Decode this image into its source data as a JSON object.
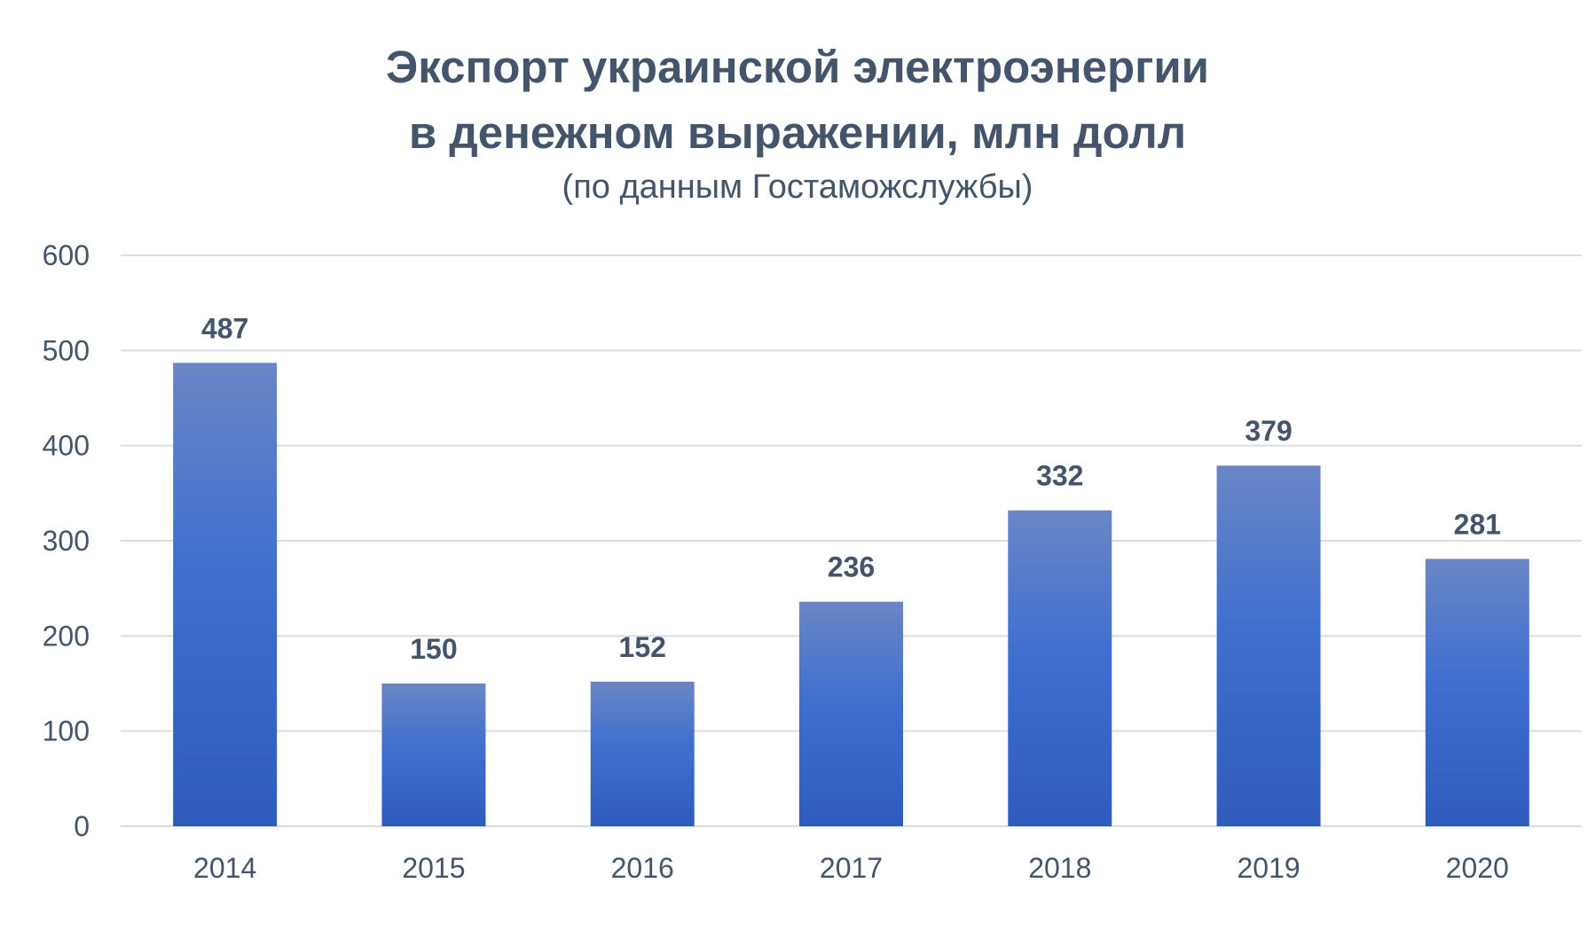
{
  "chart_data": {
    "type": "bar",
    "title_line1": "Экспорт украинской электроэнергии",
    "title_line2": "в денежном выражении, млн долл",
    "subtitle": "(по данным Гостаможслужбы)",
    "xlabel": "",
    "ylabel": "",
    "categories": [
      "2014",
      "2015",
      "2016",
      "2017",
      "2018",
      "2019",
      "2020"
    ],
    "values": [
      487,
      150,
      152,
      236,
      332,
      379,
      281
    ],
    "data_labels": [
      "487",
      "150",
      "152",
      "236",
      "332",
      "379",
      "281"
    ],
    "ylim": [
      0,
      600
    ],
    "yticks": [
      "0",
      "100",
      "200",
      "300",
      "400",
      "500",
      "600"
    ],
    "grid": true,
    "legend": "none",
    "colors": {
      "bar_top": "#6a86c6",
      "bar_bottom": "#2f5bbd",
      "text": "#44546a",
      "grid": "#d9dde5"
    }
  }
}
